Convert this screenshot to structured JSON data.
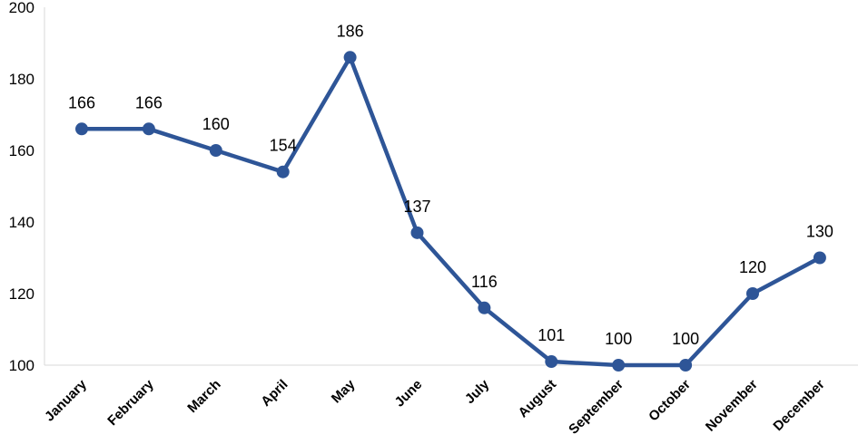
{
  "chart_data": {
    "type": "line",
    "title": "",
    "xlabel": "",
    "ylabel": "",
    "categories": [
      "January",
      "February",
      "March",
      "April",
      "May",
      "June",
      "July",
      "August",
      "September",
      "October",
      "November",
      "December"
    ],
    "series": [
      {
        "values": [
          166,
          166,
          160,
          154,
          186,
          137,
          116,
          101,
          100,
          100,
          120,
          130
        ]
      }
    ],
    "ylim": [
      100,
      200
    ],
    "yticks": [
      100,
      120,
      140,
      160,
      180,
      200
    ],
    "grid": false,
    "legend": "none",
    "data_labels": true,
    "line_color": "#2e5597",
    "marker": "circle"
  }
}
